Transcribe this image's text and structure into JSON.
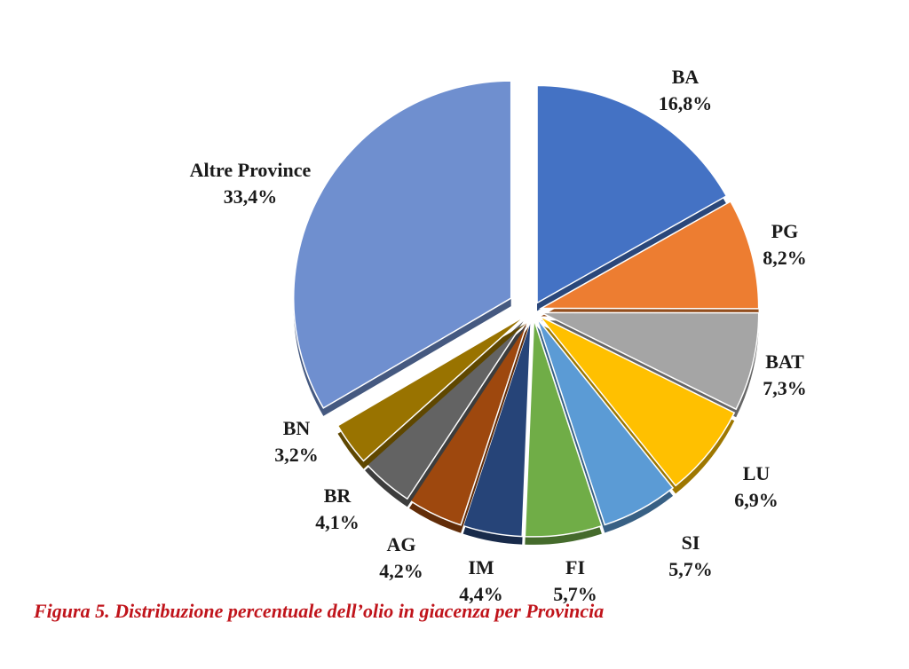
{
  "chart_data": {
    "type": "pie",
    "title": "",
    "slices": [
      {
        "label": "BA",
        "value": 16.8,
        "value_text": "16,8%",
        "color": "#4472c4"
      },
      {
        "label": "PG",
        "value": 8.2,
        "value_text": "8,2%",
        "color": "#ed7d31"
      },
      {
        "label": "BAT",
        "value": 7.3,
        "value_text": "7,3%",
        "color": "#a5a5a5"
      },
      {
        "label": "LU",
        "value": 6.9,
        "value_text": "6,9%",
        "color": "#ffc000"
      },
      {
        "label": "SI",
        "value": 5.7,
        "value_text": "5,7%",
        "color": "#5b9bd5"
      },
      {
        "label": "FI",
        "value": 5.7,
        "value_text": "5,7%",
        "color": "#70ad47"
      },
      {
        "label": "IM",
        "value": 4.4,
        "value_text": "4,4%",
        "color": "#264478"
      },
      {
        "label": "AG",
        "value": 4.2,
        "value_text": "4,2%",
        "color": "#9e480e"
      },
      {
        "label": "BR",
        "value": 4.1,
        "value_text": "4,1%",
        "color": "#636363"
      },
      {
        "label": "BN",
        "value": 3.2,
        "value_text": "3,2%",
        "color": "#997300"
      },
      {
        "label": "Altre Province",
        "value": 33.4,
        "value_text": "33,4%",
        "color": "#6f8fcf"
      }
    ],
    "exploded": true,
    "legend": "none"
  },
  "caption": "Figura 5. Distribuzione percentuale dell’olio in giacenza per Provincia"
}
